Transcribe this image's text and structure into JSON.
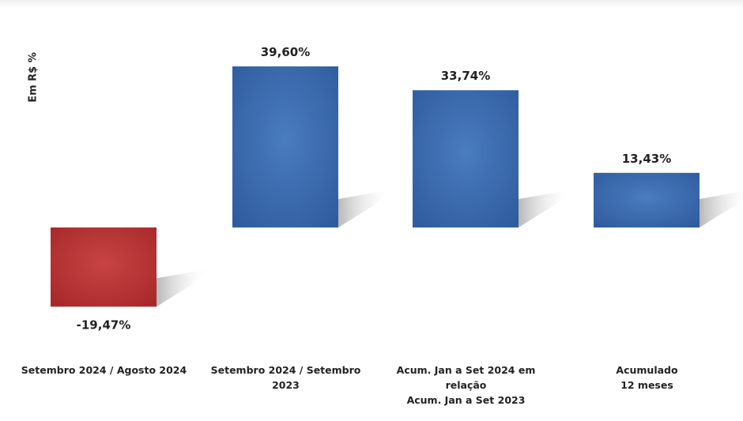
{
  "chart_data": {
    "type": "bar",
    "ylabel": "Em R$ %",
    "categories": [
      "Setembro 2024 / Agosto 2024",
      "Setembro 2024 / Setembro 2023",
      "Acum. Jan a Set 2024 em relação Acum. Jan a Set 2023",
      "Acumulado 12 meses"
    ],
    "category_lines": [
      [
        "Setembro 2024 / Agosto 2024"
      ],
      [
        "Setembro 2024 / Setembro",
        "2023"
      ],
      [
        "Acum. Jan a Set 2024 em",
        "relação",
        "Acum. Jan a Set 2023"
      ],
      [
        "Acumulado",
        "12 meses"
      ]
    ],
    "values": [
      -19.47,
      39.6,
      33.74,
      13.43
    ],
    "data_labels": [
      "-19,47%",
      "39,60%",
      "33,74%",
      "13,43%"
    ],
    "ylim": [
      -22,
      40
    ],
    "grid": false,
    "legend": "none"
  },
  "colors": {
    "positive": "#2f5c9e",
    "positive_light": "#4a7cc0",
    "negative": "#a8282a",
    "negative_light": "#c84444",
    "shadow": "#b8b8b8",
    "label": "#222222"
  }
}
